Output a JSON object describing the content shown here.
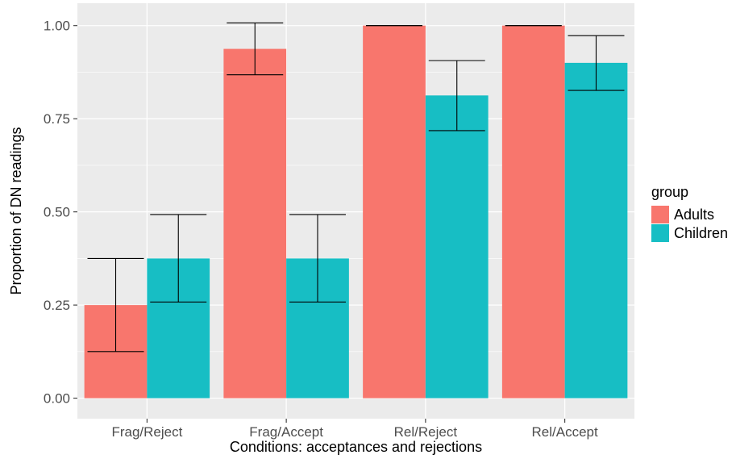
{
  "chart_data": {
    "type": "bar",
    "categories": [
      "Frag/Reject",
      "Frag/Accept",
      "Rel/Reject",
      "Rel/Accept"
    ],
    "series": [
      {
        "name": "Adults",
        "color": "#F8766D",
        "values": [
          0.25,
          0.9375,
          1.0,
          1.0
        ],
        "error_low": [
          0.125,
          0.868,
          1.0,
          1.0
        ],
        "error_high": [
          0.375,
          1.007,
          1.0,
          1.0
        ]
      },
      {
        "name": "Children",
        "color": "#17BEC4",
        "values": [
          0.375,
          0.375,
          0.8125,
          0.9
        ],
        "error_low": [
          0.258,
          0.258,
          0.718,
          0.826
        ],
        "error_high": [
          0.493,
          0.493,
          0.906,
          0.973
        ]
      }
    ],
    "title": "",
    "xlabel": "Conditions: acceptances and rejections",
    "ylabel": "Proportion of DN readings",
    "ylim": [
      -0.055,
      1.06
    ],
    "yticks": [
      0.0,
      0.25,
      0.5,
      0.75,
      1.0
    ],
    "ytick_labels": [
      "0.00",
      "0.25",
      "0.50",
      "0.75",
      "1.00"
    ],
    "grid": true,
    "panel_background": "#EBEBEB",
    "grid_color": "#FFFFFF",
    "legend": {
      "title": "group",
      "position": "right",
      "entries": [
        "Adults",
        "Children"
      ]
    }
  }
}
